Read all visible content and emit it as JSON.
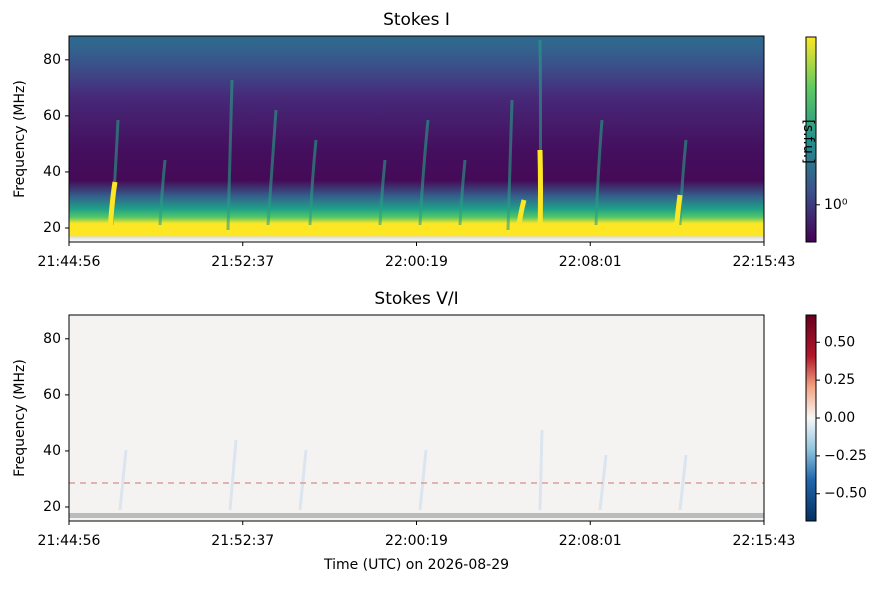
{
  "chart_data": [
    {
      "type": "heatmap",
      "title": "Stokes I",
      "y_label": "Frequency (MHz)",
      "ylim": [
        15,
        88.5
      ],
      "yticks": [
        20,
        40,
        60,
        80
      ],
      "xticks": [
        "21:44:56",
        "21:52:37",
        "22:00:19",
        "22:08:01",
        "22:15:43"
      ],
      "colormap": "viridis",
      "colorbar_label": "[s.f.u.]",
      "colorbar_log": true,
      "clim": [
        0.6,
        10
      ],
      "colorbar_ticks": [
        {
          "value": 1,
          "label": "10⁰"
        }
      ]
    },
    {
      "type": "heatmap",
      "title": "Stokes V/I",
      "y_label": "Frequency (MHz)",
      "x_label": "Time (UTC) on 2026-08-29",
      "ylim": [
        15,
        88.5
      ],
      "yticks": [
        20,
        40,
        60,
        80
      ],
      "xticks": [
        "21:44:56",
        "21:52:37",
        "22:00:19",
        "22:08:01",
        "22:15:43"
      ],
      "colormap": "RdBu_r",
      "colorbar_log": false,
      "clim": [
        -0.68,
        0.68
      ],
      "colorbar_ticks": [
        {
          "value": -0.5,
          "label": "−0.50"
        },
        {
          "value": -0.25,
          "label": "−0.25"
        },
        {
          "value": 0,
          "label": "0.00"
        },
        {
          "value": 0.25,
          "label": "0.25"
        },
        {
          "value": 0.5,
          "label": "0.50"
        }
      ]
    }
  ]
}
